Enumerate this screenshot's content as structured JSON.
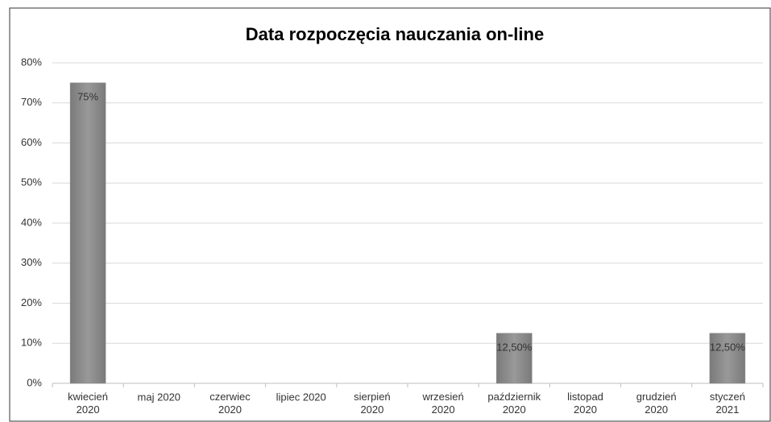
{
  "chart_data": {
    "type": "bar",
    "title": "Data rozpoczęcia nauczania on-line",
    "categories": [
      "kwiecień 2020",
      "maj 2020",
      "czerwiec 2020",
      "lipiec 2020",
      "sierpień 2020",
      "wrzesień 2020",
      "październik 2020",
      "listopad 2020",
      "grudzień 2020",
      "styczeń 2021"
    ],
    "values": [
      75,
      0,
      0,
      0,
      0,
      0,
      12.5,
      0,
      0,
      12.5
    ],
    "value_labels": [
      "75%",
      null,
      null,
      null,
      null,
      null,
      "12,50%",
      null,
      null,
      "12,50%"
    ],
    "color": "#8c8c8c",
    "ylim": [
      0,
      80
    ],
    "yticks": [
      {
        "value": 0,
        "label": "0%"
      },
      {
        "value": 10,
        "label": "10%"
      },
      {
        "value": 20,
        "label": "20%"
      },
      {
        "value": 30,
        "label": "30%"
      },
      {
        "value": 40,
        "label": "40%"
      },
      {
        "value": 50,
        "label": "50%"
      },
      {
        "value": 60,
        "label": "60%"
      },
      {
        "value": 70,
        "label": "70%"
      },
      {
        "value": 80,
        "label": "80%"
      }
    ],
    "grid": true
  }
}
